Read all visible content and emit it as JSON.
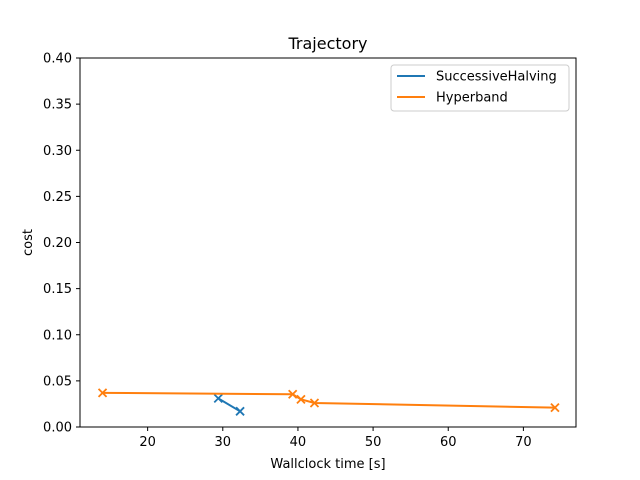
{
  "chart_data": {
    "type": "line",
    "title": "Trajectory",
    "xlabel": "Wallclock time [s]",
    "ylabel": "cost",
    "xlim": [
      11,
      77
    ],
    "ylim": [
      0,
      0.4
    ],
    "xticks": [
      20,
      30,
      40,
      50,
      60,
      70
    ],
    "yticks": [
      0.0,
      0.05,
      0.1,
      0.15,
      0.2,
      0.25,
      0.3,
      0.35,
      0.4
    ],
    "ytick_labels": [
      "0.00",
      "0.05",
      "0.10",
      "0.15",
      "0.20",
      "0.25",
      "0.30",
      "0.35",
      "0.40"
    ],
    "xtick_labels": [
      "20",
      "30",
      "40",
      "50",
      "60",
      "70"
    ],
    "grid": false,
    "legend_position": "top-right",
    "marker": "x",
    "series": [
      {
        "name": "SuccessiveHalving",
        "color": "#1f77b4",
        "x": [
          29.4,
          32.3
        ],
        "y": [
          0.031,
          0.017
        ]
      },
      {
        "name": "Hyperband",
        "color": "#ff7f0e",
        "x": [
          14.0,
          39.3,
          40.4,
          42.2,
          74.2
        ],
        "y": [
          0.037,
          0.0355,
          0.03,
          0.026,
          0.021
        ]
      }
    ]
  }
}
